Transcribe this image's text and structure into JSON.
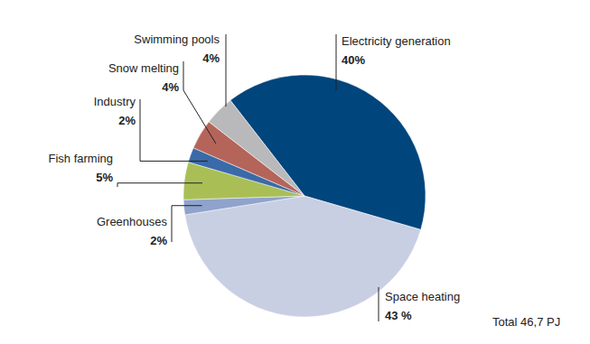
{
  "chart_data": {
    "type": "pie",
    "categories": [
      "Electricity generation",
      "Space heating",
      "Greenhouses",
      "Fish farming",
      "Industry",
      "Snow melting",
      "Swimming pools"
    ],
    "values": [
      40,
      43,
      2,
      5,
      2,
      4,
      4
    ],
    "value_labels": [
      "40%",
      "43 %",
      "2%",
      "5%",
      "2%",
      "4%",
      "4%"
    ],
    "colors": [
      "#00457c",
      "#c9cfe3",
      "#8fa3cc",
      "#a9bf56",
      "#3a6aa8",
      "#b5645a",
      "#b9b9bb"
    ],
    "annotation": "Total 46,7 PJ",
    "data_labels": true
  }
}
